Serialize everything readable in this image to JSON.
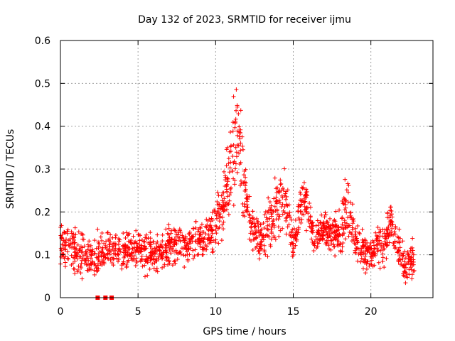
{
  "chart_data": {
    "type": "scatter",
    "title": "Day 132 of 2023, SRMTID for receiver ijmu",
    "xlabel": "GPS time / hours",
    "ylabel": "SRMTID / TECUs",
    "xlim": [
      0,
      24
    ],
    "ylim": [
      0,
      0.6
    ],
    "x_ticks": [
      0,
      5,
      10,
      15,
      20
    ],
    "x_tick_labels": [
      "0",
      "5",
      "10",
      "15",
      "20"
    ],
    "y_ticks": [
      0,
      0.1,
      0.2,
      0.3,
      0.4,
      0.5,
      0.6
    ],
    "y_tick_labels": [
      "0",
      "0.1",
      "0.2",
      "0.3",
      "0.4",
      "0.5",
      "0.6"
    ],
    "grid": true,
    "marker": "plus",
    "series": [
      {
        "name": "SRMTID",
        "color": "#ff0000",
        "profile": [
          {
            "t": 0.0,
            "mean": 0.13,
            "spread": 0.05
          },
          {
            "t": 1.0,
            "mean": 0.11,
            "spread": 0.05
          },
          {
            "t": 2.0,
            "mean": 0.09,
            "spread": 0.04
          },
          {
            "t": 3.0,
            "mean": 0.11,
            "spread": 0.04
          },
          {
            "t": 4.0,
            "mean": 0.11,
            "spread": 0.04
          },
          {
            "t": 5.0,
            "mean": 0.11,
            "spread": 0.04
          },
          {
            "t": 6.0,
            "mean": 0.1,
            "spread": 0.04
          },
          {
            "t": 7.0,
            "mean": 0.12,
            "spread": 0.04
          },
          {
            "t": 8.0,
            "mean": 0.12,
            "spread": 0.04
          },
          {
            "t": 9.0,
            "mean": 0.14,
            "spread": 0.04
          },
          {
            "t": 10.0,
            "mean": 0.17,
            "spread": 0.05
          },
          {
            "t": 10.5,
            "mean": 0.22,
            "spread": 0.06
          },
          {
            "t": 11.0,
            "mean": 0.32,
            "spread": 0.1
          },
          {
            "t": 11.4,
            "mean": 0.4,
            "spread": 0.12
          },
          {
            "t": 12.0,
            "mean": 0.22,
            "spread": 0.06
          },
          {
            "t": 12.5,
            "mean": 0.15,
            "spread": 0.04
          },
          {
            "t": 13.0,
            "mean": 0.14,
            "spread": 0.05
          },
          {
            "t": 14.0,
            "mean": 0.2,
            "spread": 0.07
          },
          {
            "t": 14.4,
            "mean": 0.25,
            "spread": 0.07
          },
          {
            "t": 15.0,
            "mean": 0.12,
            "spread": 0.04
          },
          {
            "t": 15.7,
            "mean": 0.24,
            "spread": 0.05
          },
          {
            "t": 16.3,
            "mean": 0.14,
            "spread": 0.04
          },
          {
            "t": 17.0,
            "mean": 0.16,
            "spread": 0.04
          },
          {
            "t": 18.0,
            "mean": 0.15,
            "spread": 0.05
          },
          {
            "t": 18.5,
            "mean": 0.22,
            "spread": 0.07
          },
          {
            "t": 19.0,
            "mean": 0.13,
            "spread": 0.04
          },
          {
            "t": 20.0,
            "mean": 0.1,
            "spread": 0.04
          },
          {
            "t": 21.0,
            "mean": 0.13,
            "spread": 0.05
          },
          {
            "t": 21.3,
            "mean": 0.18,
            "spread": 0.05
          },
          {
            "t": 22.0,
            "mean": 0.08,
            "spread": 0.04
          },
          {
            "t": 22.8,
            "mean": 0.09,
            "spread": 0.04
          }
        ]
      }
    ],
    "gap_markers": [
      {
        "x": 2.4,
        "y": 0
      },
      {
        "x": 2.9,
        "y": 0
      },
      {
        "x": 3.3,
        "y": 0
      }
    ]
  }
}
